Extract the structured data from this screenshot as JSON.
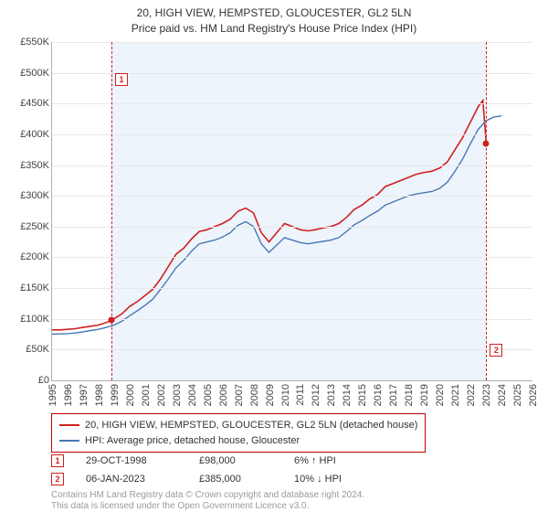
{
  "title": {
    "line1": "20, HIGH VIEW, HEMPSTED, GLOUCESTER, GL2 5LN",
    "line2": "Price paid vs. HM Land Registry's House Price Index (HPI)"
  },
  "chart": {
    "type": "line",
    "background_color": "#ffffff",
    "grid_color": "#e8e8e8",
    "axis_color": "#b0b0b0",
    "shade_color": "#edf4fb",
    "y": {
      "min": 0,
      "max": 550000,
      "step": 50000,
      "prefix": "£",
      "suffix": "K",
      "divisor": 1000
    },
    "x": {
      "min": 1995,
      "max": 2026,
      "step": 1
    },
    "shade_ranges": [
      [
        1998.83,
        2023.02
      ]
    ],
    "series": [
      {
        "name": "price_paid",
        "label": "20, HIGH VIEW, HEMPSTED, GLOUCESTER, GL2 5LN (detached house)",
        "color": "#d02020",
        "width": 1.6,
        "data": [
          [
            1995,
            82000
          ],
          [
            1995.5,
            82000
          ],
          [
            1996,
            83000
          ],
          [
            1996.5,
            84000
          ],
          [
            1997,
            86000
          ],
          [
            1997.5,
            88000
          ],
          [
            1998,
            90000
          ],
          [
            1998.5,
            94000
          ],
          [
            1998.83,
            98000
          ],
          [
            1999,
            100000
          ],
          [
            1999.5,
            108000
          ],
          [
            2000,
            120000
          ],
          [
            2000.5,
            128000
          ],
          [
            2001,
            138000
          ],
          [
            2001.5,
            148000
          ],
          [
            2002,
            165000
          ],
          [
            2002.5,
            185000
          ],
          [
            2003,
            205000
          ],
          [
            2003.5,
            215000
          ],
          [
            2004,
            230000
          ],
          [
            2004.5,
            242000
          ],
          [
            2005,
            245000
          ],
          [
            2005.5,
            250000
          ],
          [
            2006,
            255000
          ],
          [
            2006.5,
            262000
          ],
          [
            2007,
            275000
          ],
          [
            2007.5,
            280000
          ],
          [
            2008,
            272000
          ],
          [
            2008.5,
            240000
          ],
          [
            2009,
            225000
          ],
          [
            2009.5,
            240000
          ],
          [
            2010,
            255000
          ],
          [
            2010.5,
            250000
          ],
          [
            2011,
            245000
          ],
          [
            2011.5,
            243000
          ],
          [
            2012,
            245000
          ],
          [
            2012.5,
            248000
          ],
          [
            2013,
            250000
          ],
          [
            2013.5,
            255000
          ],
          [
            2014,
            265000
          ],
          [
            2014.5,
            278000
          ],
          [
            2015,
            285000
          ],
          [
            2015.5,
            295000
          ],
          [
            2016,
            302000
          ],
          [
            2016.5,
            315000
          ],
          [
            2017,
            320000
          ],
          [
            2017.5,
            325000
          ],
          [
            2018,
            330000
          ],
          [
            2018.5,
            335000
          ],
          [
            2019,
            338000
          ],
          [
            2019.5,
            340000
          ],
          [
            2020,
            345000
          ],
          [
            2020.5,
            355000
          ],
          [
            2021,
            375000
          ],
          [
            2021.5,
            395000
          ],
          [
            2022,
            420000
          ],
          [
            2022.5,
            445000
          ],
          [
            2022.8,
            455000
          ],
          [
            2023.02,
            385000
          ]
        ]
      },
      {
        "name": "hpi",
        "label": "HPI: Average price, detached house, Gloucester",
        "color": "#4a78b5",
        "width": 1.4,
        "data": [
          [
            1995,
            75000
          ],
          [
            1995.5,
            75500
          ],
          [
            1996,
            76000
          ],
          [
            1996.5,
            77000
          ],
          [
            1997,
            79000
          ],
          [
            1997.5,
            81000
          ],
          [
            1998,
            83000
          ],
          [
            1998.5,
            86000
          ],
          [
            1999,
            90000
          ],
          [
            1999.5,
            96000
          ],
          [
            2000,
            105000
          ],
          [
            2000.5,
            113000
          ],
          [
            2001,
            122000
          ],
          [
            2001.5,
            132000
          ],
          [
            2002,
            148000
          ],
          [
            2002.5,
            165000
          ],
          [
            2003,
            183000
          ],
          [
            2003.5,
            195000
          ],
          [
            2004,
            210000
          ],
          [
            2004.5,
            222000
          ],
          [
            2005,
            225000
          ],
          [
            2005.5,
            228000
          ],
          [
            2006,
            233000
          ],
          [
            2006.5,
            240000
          ],
          [
            2007,
            252000
          ],
          [
            2007.5,
            258000
          ],
          [
            2008,
            250000
          ],
          [
            2008.5,
            222000
          ],
          [
            2009,
            208000
          ],
          [
            2009.5,
            220000
          ],
          [
            2010,
            232000
          ],
          [
            2010.5,
            228000
          ],
          [
            2011,
            224000
          ],
          [
            2011.5,
            222000
          ],
          [
            2012,
            224000
          ],
          [
            2012.5,
            226000
          ],
          [
            2013,
            228000
          ],
          [
            2013.5,
            232000
          ],
          [
            2014,
            242000
          ],
          [
            2014.5,
            253000
          ],
          [
            2015,
            260000
          ],
          [
            2015.5,
            268000
          ],
          [
            2016,
            275000
          ],
          [
            2016.5,
            285000
          ],
          [
            2017,
            290000
          ],
          [
            2017.5,
            295000
          ],
          [
            2018,
            300000
          ],
          [
            2018.5,
            303000
          ],
          [
            2019,
            305000
          ],
          [
            2019.5,
            307000
          ],
          [
            2020,
            312000
          ],
          [
            2020.5,
            322000
          ],
          [
            2021,
            340000
          ],
          [
            2021.5,
            360000
          ],
          [
            2022,
            385000
          ],
          [
            2022.5,
            408000
          ],
          [
            2023,
            422000
          ],
          [
            2023.5,
            428000
          ],
          [
            2024,
            430000
          ]
        ]
      }
    ],
    "markers": [
      {
        "n": "1",
        "x": 1998.83,
        "y": 98000,
        "box_y": 500000
      },
      {
        "n": "2",
        "x": 2023.02,
        "y": 385000,
        "box_y": 60000
      }
    ]
  },
  "legend": {
    "rows": [
      {
        "color": "#d02020",
        "label": "20, HIGH VIEW, HEMPSTED, GLOUCESTER, GL2 5LN (detached house)"
      },
      {
        "color": "#4a78b5",
        "label": "HPI: Average price, detached house, Gloucester"
      }
    ]
  },
  "events": [
    {
      "n": "1",
      "date": "29-OCT-1998",
      "price": "£98,000",
      "pct": "6%",
      "dir": "up",
      "suffix": "HPI"
    },
    {
      "n": "2",
      "date": "06-JAN-2023",
      "price": "£385,000",
      "pct": "10%",
      "dir": "down",
      "suffix": "HPI"
    }
  ],
  "attribution": {
    "line1": "Contains HM Land Registry data © Crown copyright and database right 2024.",
    "line2": "This data is licensed under the Open Government Licence v3.0."
  }
}
